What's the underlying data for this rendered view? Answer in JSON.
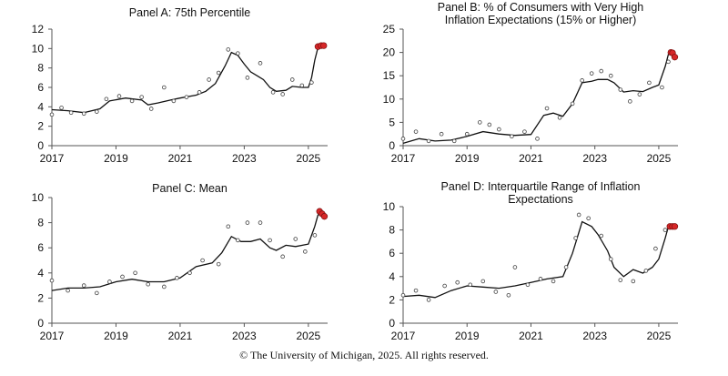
{
  "copyright": "© The University of Michigan, 2025. All rights reserved.",
  "chart_data": [
    {
      "id": "A",
      "type": "line",
      "title": "Panel A: 75th Percentile",
      "xlim": [
        2017,
        2025.6
      ],
      "xticks": [
        2017,
        2019,
        2021,
        2023,
        2025
      ],
      "ylim": [
        0,
        12
      ],
      "yticks": [
        0,
        2,
        4,
        6,
        8,
        10,
        12
      ],
      "line": [
        [
          2017,
          3.7
        ],
        [
          2017.5,
          3.6
        ],
        [
          2018,
          3.4
        ],
        [
          2018.5,
          3.8
        ],
        [
          2018.8,
          4.6
        ],
        [
          2019.3,
          4.9
        ],
        [
          2019.8,
          4.7
        ],
        [
          2020,
          4.2
        ],
        [
          2020.3,
          4.4
        ],
        [
          2020.7,
          4.7
        ],
        [
          2021,
          4.9
        ],
        [
          2021.5,
          5.2
        ],
        [
          2021.8,
          5.6
        ],
        [
          2022.1,
          6.4
        ],
        [
          2022.4,
          8.2
        ],
        [
          2022.6,
          9.6
        ],
        [
          2022.8,
          9.3
        ],
        [
          2023,
          8.4
        ],
        [
          2023.2,
          7.6
        ],
        [
          2023.4,
          7.2
        ],
        [
          2023.6,
          6.8
        ],
        [
          2023.8,
          6.0
        ],
        [
          2024,
          5.6
        ],
        [
          2024.3,
          5.7
        ],
        [
          2024.5,
          6.1
        ],
        [
          2024.8,
          6.0
        ],
        [
          2025,
          6.0
        ],
        [
          2025.1,
          7.0
        ],
        [
          2025.2,
          8.8
        ],
        [
          2025.3,
          10.1
        ],
        [
          2025.4,
          10.3
        ]
      ],
      "points": [
        [
          2017,
          3.2
        ],
        [
          2017.3,
          3.9
        ],
        [
          2017.6,
          3.4
        ],
        [
          2018,
          3.3
        ],
        [
          2018.4,
          3.5
        ],
        [
          2018.7,
          4.8
        ],
        [
          2019.1,
          5.1
        ],
        [
          2019.5,
          4.6
        ],
        [
          2019.8,
          5.0
        ],
        [
          2020.1,
          3.8
        ],
        [
          2020.5,
          6.0
        ],
        [
          2020.8,
          4.6
        ],
        [
          2021.2,
          5.0
        ],
        [
          2021.6,
          5.5
        ],
        [
          2021.9,
          6.8
        ],
        [
          2022.2,
          7.5
        ],
        [
          2022.5,
          9.9
        ],
        [
          2022.8,
          9.5
        ],
        [
          2023.1,
          7.0
        ],
        [
          2023.5,
          8.5
        ],
        [
          2023.9,
          5.5
        ],
        [
          2024.2,
          5.3
        ],
        [
          2024.5,
          6.8
        ],
        [
          2024.8,
          6.2
        ],
        [
          2025.1,
          6.5
        ]
      ],
      "highlight": [
        [
          2025.3,
          10.2
        ],
        [
          2025.4,
          10.3
        ],
        [
          2025.48,
          10.3
        ]
      ]
    },
    {
      "id": "B",
      "type": "line",
      "title": "Panel B: % of Consumers with Very High Inflation Expectations (15% or Higher)",
      "title_lines": [
        "Panel B: % of Consumers with Very High",
        "Inflation Expectations (15% or Higher)"
      ],
      "xlim": [
        2017,
        2025.6
      ],
      "xticks": [
        2017,
        2019,
        2021,
        2023,
        2025
      ],
      "ylim": [
        0,
        25
      ],
      "yticks": [
        0,
        5,
        10,
        15,
        20,
        25
      ],
      "line": [
        [
          2017,
          0.5
        ],
        [
          2017.5,
          1.5
        ],
        [
          2018,
          1.0
        ],
        [
          2018.5,
          1.2
        ],
        [
          2019,
          2.0
        ],
        [
          2019.5,
          3.0
        ],
        [
          2020,
          2.5
        ],
        [
          2020.5,
          2.2
        ],
        [
          2021,
          2.4
        ],
        [
          2021.4,
          6.5
        ],
        [
          2021.7,
          7.0
        ],
        [
          2022,
          6.3
        ],
        [
          2022.3,
          9.0
        ],
        [
          2022.6,
          13.5
        ],
        [
          2022.9,
          13.8
        ],
        [
          2023.1,
          14.2
        ],
        [
          2023.4,
          14.2
        ],
        [
          2023.6,
          13.5
        ],
        [
          2023.9,
          11.5
        ],
        [
          2024.2,
          11.8
        ],
        [
          2024.5,
          11.6
        ],
        [
          2024.8,
          12.5
        ],
        [
          2025,
          13.0
        ],
        [
          2025.2,
          17.0
        ],
        [
          2025.3,
          19.6
        ],
        [
          2025.4,
          19.8
        ]
      ],
      "points": [
        [
          2017,
          1.5
        ],
        [
          2017.4,
          3.0
        ],
        [
          2017.8,
          1.0
        ],
        [
          2018.2,
          2.5
        ],
        [
          2018.6,
          1.0
        ],
        [
          2019,
          2.5
        ],
        [
          2019.4,
          5.0
        ],
        [
          2019.7,
          4.5
        ],
        [
          2020,
          3.5
        ],
        [
          2020.4,
          2.0
        ],
        [
          2020.8,
          3.0
        ],
        [
          2021.2,
          1.5
        ],
        [
          2021.5,
          8.0
        ],
        [
          2021.9,
          6.0
        ],
        [
          2022.3,
          9.0
        ],
        [
          2022.6,
          14.0
        ],
        [
          2022.9,
          15.5
        ],
        [
          2023.2,
          16.0
        ],
        [
          2023.5,
          15.0
        ],
        [
          2023.8,
          12.0
        ],
        [
          2024.1,
          9.5
        ],
        [
          2024.4,
          11.0
        ],
        [
          2024.7,
          13.5
        ],
        [
          2025.1,
          12.5
        ],
        [
          2025.3,
          18.0
        ]
      ],
      "highlight": [
        [
          2025.38,
          20.0
        ],
        [
          2025.43,
          19.9
        ],
        [
          2025.5,
          19.0
        ]
      ]
    },
    {
      "id": "C",
      "type": "line",
      "title": "Panel C: Mean",
      "xlim": [
        2017,
        2025.6
      ],
      "xticks": [
        2017,
        2019,
        2021,
        2023,
        2025
      ],
      "ylim": [
        0,
        10
      ],
      "yticks": [
        0,
        2,
        4,
        6,
        8,
        10
      ],
      "line": [
        [
          2017,
          2.6
        ],
        [
          2017.5,
          2.8
        ],
        [
          2018,
          2.8
        ],
        [
          2018.5,
          2.9
        ],
        [
          2019,
          3.3
        ],
        [
          2019.5,
          3.5
        ],
        [
          2020,
          3.3
        ],
        [
          2020.5,
          3.3
        ],
        [
          2021,
          3.6
        ],
        [
          2021.5,
          4.5
        ],
        [
          2022,
          4.8
        ],
        [
          2022.3,
          5.6
        ],
        [
          2022.6,
          6.9
        ],
        [
          2022.9,
          6.5
        ],
        [
          2023.2,
          6.5
        ],
        [
          2023.5,
          6.7
        ],
        [
          2023.8,
          6.0
        ],
        [
          2024,
          5.8
        ],
        [
          2024.3,
          6.2
        ],
        [
          2024.6,
          6.1
        ],
        [
          2025,
          6.3
        ],
        [
          2025.2,
          7.7
        ],
        [
          2025.3,
          8.6
        ],
        [
          2025.4,
          8.7
        ]
      ],
      "points": [
        [
          2017,
          3.4
        ],
        [
          2017.5,
          2.6
        ],
        [
          2018,
          3.0
        ],
        [
          2018.4,
          2.4
        ],
        [
          2018.8,
          3.3
        ],
        [
          2019.2,
          3.7
        ],
        [
          2019.6,
          4.0
        ],
        [
          2020,
          3.1
        ],
        [
          2020.5,
          2.9
        ],
        [
          2020.9,
          3.6
        ],
        [
          2021.3,
          4.0
        ],
        [
          2021.7,
          5.0
        ],
        [
          2022.2,
          4.7
        ],
        [
          2022.5,
          7.7
        ],
        [
          2022.8,
          6.6
        ],
        [
          2023.1,
          8.0
        ],
        [
          2023.5,
          8.0
        ],
        [
          2023.8,
          6.6
        ],
        [
          2024.2,
          5.3
        ],
        [
          2024.6,
          6.7
        ],
        [
          2024.9,
          5.7
        ],
        [
          2025.2,
          7.0
        ]
      ],
      "highlight": [
        [
          2025.35,
          8.9
        ],
        [
          2025.43,
          8.7
        ],
        [
          2025.5,
          8.5
        ]
      ]
    },
    {
      "id": "D",
      "type": "line",
      "title": "Panel D: Interquartile Range of Inflation Expectations",
      "title_lines": [
        "Panel D: Interquartile Range of Inflation",
        "Expectations"
      ],
      "xlim": [
        2017,
        2025.6
      ],
      "xticks": [
        2017,
        2019,
        2021,
        2023,
        2025
      ],
      "ylim": [
        0,
        10
      ],
      "yticks": [
        0,
        2,
        4,
        6,
        8,
        10
      ],
      "line": [
        [
          2017,
          2.3
        ],
        [
          2017.5,
          2.4
        ],
        [
          2018,
          2.2
        ],
        [
          2018.5,
          2.8
        ],
        [
          2019,
          3.2
        ],
        [
          2019.5,
          3.1
        ],
        [
          2020,
          3.0
        ],
        [
          2020.5,
          3.2
        ],
        [
          2021,
          3.5
        ],
        [
          2021.5,
          3.8
        ],
        [
          2022,
          4.0
        ],
        [
          2022.3,
          6.0
        ],
        [
          2022.6,
          8.7
        ],
        [
          2022.9,
          8.3
        ],
        [
          2023.1,
          7.6
        ],
        [
          2023.4,
          6.2
        ],
        [
          2023.6,
          4.8
        ],
        [
          2023.9,
          4.0
        ],
        [
          2024.2,
          4.6
        ],
        [
          2024.5,
          4.3
        ],
        [
          2024.8,
          4.8
        ],
        [
          2025,
          5.5
        ],
        [
          2025.2,
          7.3
        ],
        [
          2025.3,
          8.3
        ],
        [
          2025.4,
          8.4
        ]
      ],
      "points": [
        [
          2017,
          2.4
        ],
        [
          2017.4,
          2.8
        ],
        [
          2017.8,
          2.0
        ],
        [
          2018.3,
          3.2
        ],
        [
          2018.7,
          3.5
        ],
        [
          2019.1,
          3.3
        ],
        [
          2019.5,
          3.6
        ],
        [
          2019.9,
          2.7
        ],
        [
          2020.3,
          2.4
        ],
        [
          2020.5,
          4.8
        ],
        [
          2020.9,
          3.3
        ],
        [
          2021.3,
          3.8
        ],
        [
          2021.7,
          3.6
        ],
        [
          2022.1,
          4.8
        ],
        [
          2022.4,
          7.3
        ],
        [
          2022.5,
          9.3
        ],
        [
          2022.8,
          9.0
        ],
        [
          2023.2,
          7.5
        ],
        [
          2023.5,
          5.5
        ],
        [
          2023.8,
          3.7
        ],
        [
          2024.2,
          3.6
        ],
        [
          2024.6,
          4.5
        ],
        [
          2024.9,
          6.4
        ],
        [
          2025.2,
          8.0
        ]
      ],
      "highlight": [
        [
          2025.35,
          8.3
        ],
        [
          2025.43,
          8.3
        ],
        [
          2025.5,
          8.3
        ]
      ]
    }
  ]
}
